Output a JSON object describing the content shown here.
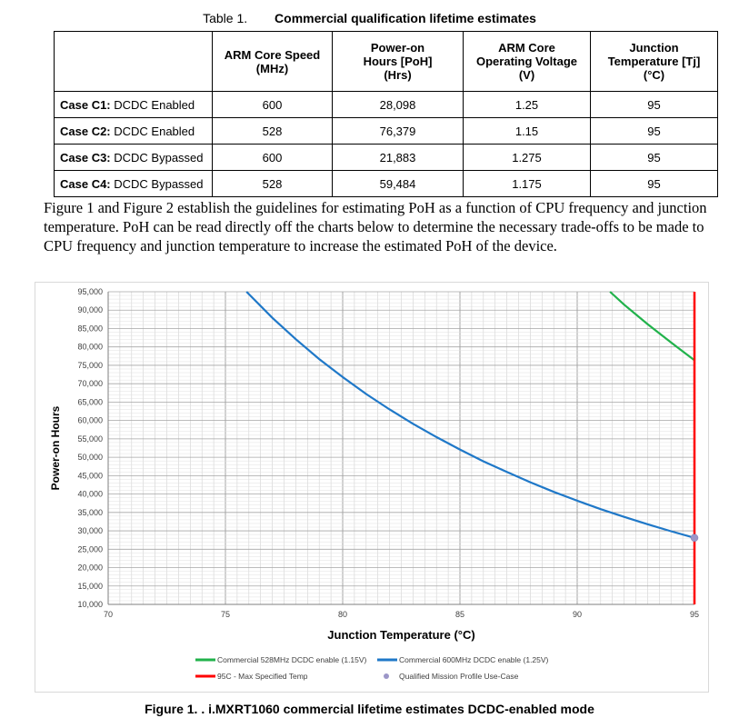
{
  "table": {
    "caption_number": "Table 1.",
    "caption_title": "Commercial qualification lifetime estimates",
    "headers": [
      "",
      "ARM Core Speed (MHz)",
      "Power-on Hours [PoH] (Hrs)",
      "ARM Core Operating Voltage (V)",
      "Junction Temperature [Tj] (°C)"
    ],
    "rows": [
      {
        "case_id": "Case C1:",
        "case_desc": "DCDC Enabled",
        "speed": "600",
        "poh": "28,098",
        "voltage": "1.25",
        "temp": "95"
      },
      {
        "case_id": "Case C2:",
        "case_desc": "DCDC Enabled",
        "speed": "528",
        "poh": "76,379",
        "voltage": "1.15",
        "temp": "95"
      },
      {
        "case_id": "Case C3:",
        "case_desc": "DCDC Bypassed",
        "speed": "600",
        "poh": "21,883",
        "voltage": "1.275",
        "temp": "95"
      },
      {
        "case_id": "Case C4:",
        "case_desc": "DCDC Bypassed",
        "speed": "528",
        "poh": "59,484",
        "voltage": "1.175",
        "temp": "95"
      }
    ]
  },
  "paragraph": "Figure 1 and Figure 2 establish the guidelines for estimating PoH as a function of CPU frequency and junction temperature. PoH can be read directly off the charts below to determine the necessary trade-offs to be made to CPU frequency and junction temperature to increase the estimated PoH of the device.",
  "chart_data": {
    "type": "line",
    "xlabel": "Junction Temperature (°C)",
    "ylabel": "Power-on Hours",
    "xlim": [
      70,
      95
    ],
    "ylim": [
      10000,
      95000
    ],
    "x_ticks": [
      70,
      75,
      80,
      85,
      90,
      95
    ],
    "y_ticks": [
      10000,
      15000,
      20000,
      25000,
      30000,
      35000,
      40000,
      45000,
      50000,
      55000,
      60000,
      65000,
      70000,
      75000,
      80000,
      85000,
      90000,
      95000
    ],
    "x_tick_labels": [
      "70",
      "75",
      "80",
      "85",
      "90",
      "95"
    ],
    "y_tick_labels": [
      "10,000",
      "15,000",
      "20,000",
      "25,000",
      "30,000",
      "35,000",
      "40,000",
      "45,000",
      "50,000",
      "55,000",
      "60,000",
      "65,000",
      "70,000",
      "75,000",
      "80,000",
      "85,000",
      "90,000",
      "95,000"
    ],
    "grid": true,
    "legend_position": "bottom",
    "series": [
      {
        "name": "Commercial 528MHz DCDC enable (1.15V)",
        "color": "#21b24b",
        "kind": "line",
        "x": [
          91.4,
          92,
          93,
          94,
          95
        ],
        "y": [
          95000,
          91500,
          86200,
          81200,
          76379
        ]
      },
      {
        "name": "Commercial 600MHz DCDC enable (1.25V)",
        "color": "#1f78c8",
        "kind": "line",
        "x": [
          75.9,
          77,
          78,
          79,
          80,
          81,
          82,
          83,
          84,
          85,
          86,
          87,
          88,
          89,
          90,
          91,
          92,
          93,
          94,
          95
        ],
        "y": [
          95000,
          87900,
          82100,
          76700,
          71800,
          67200,
          63000,
          59100,
          55500,
          52100,
          48900,
          46000,
          43200,
          40600,
          38200,
          35900,
          33800,
          31800,
          29900,
          28098
        ]
      },
      {
        "name": "95C - Max Specified Temp",
        "color": "#ff0000",
        "kind": "vline",
        "x": 95
      },
      {
        "name": "Qualified Mission Profile Use-Case",
        "color": "#9c96c8",
        "kind": "point",
        "x": 95,
        "y": 28098
      }
    ]
  },
  "figure": {
    "caption": "Figure 1. . i.MXRT1060 commercial lifetime estimates DCDC-enabled mode"
  }
}
